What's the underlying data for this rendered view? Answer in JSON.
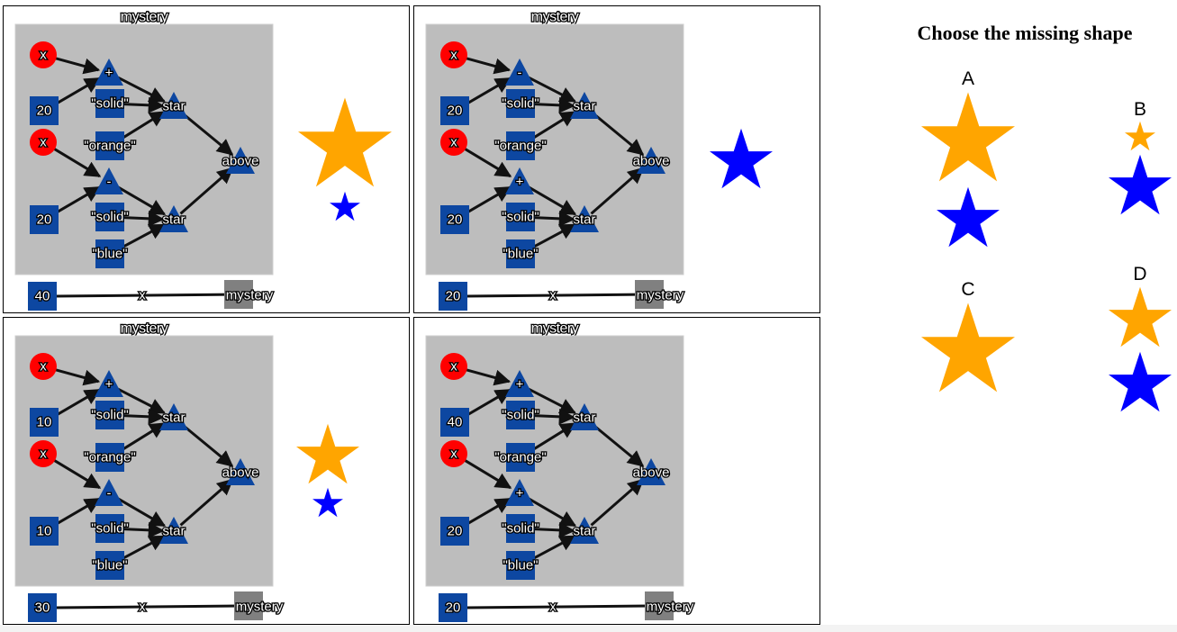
{
  "panels": [
    {
      "title": "mystery",
      "nodes": {
        "x1": "x",
        "op1": "+",
        "n1": "20",
        "mode1": "\"solid\"",
        "star1": "star",
        "x2": "x",
        "color1": "\"orange\"",
        "above": "above",
        "op2": "-",
        "n2": "20",
        "mode2": "\"solid\"",
        "star2": "star",
        "color2": "\"blue\""
      },
      "input_value": "40",
      "param_label": "x",
      "function_name": "mystery",
      "result": [
        {
          "color": "#FFA500",
          "size": 104
        },
        {
          "color": "#0000FF",
          "size": 34
        }
      ]
    },
    {
      "title": "mystery",
      "nodes": {
        "x1": "x",
        "op1": "-",
        "n1": "20",
        "mode1": "\"solid\"",
        "star1": "star",
        "x2": "x",
        "color1": "\"orange\"",
        "above": "above",
        "op2": "+",
        "n2": "20",
        "mode2": "\"solid\"",
        "star2": "star",
        "color2": "\"blue\""
      },
      "input_value": "20",
      "param_label": "x",
      "function_name": "mystery",
      "result": [
        {
          "color": "#0000FF",
          "size": 70
        }
      ]
    },
    {
      "title": "mystery",
      "nodes": {
        "x1": "x",
        "op1": "+",
        "n1": "10",
        "mode1": "\"solid\"",
        "star1": "star",
        "x2": "x",
        "color1": "\"orange\"",
        "above": "above",
        "op2": "-",
        "n2": "10",
        "mode2": "\"solid\"",
        "star2": "star",
        "color2": "\"blue\""
      },
      "input_value": "30",
      "param_label": "x",
      "function_name": "mystery",
      "result": [
        {
          "color": "#FFA500",
          "size": 70
        },
        {
          "color": "#0000FF",
          "size": 34
        }
      ]
    },
    {
      "title": "mystery",
      "nodes": {
        "x1": "x",
        "op1": "+",
        "n1": "40",
        "mode1": "\"solid\"",
        "star1": "star",
        "x2": "x",
        "color1": "\"orange\"",
        "above": "above",
        "op2": "+",
        "n2": "20",
        "mode2": "\"solid\"",
        "star2": "star",
        "color2": "\"blue\""
      },
      "input_value": "20",
      "param_label": "x",
      "function_name": "mystery",
      "result": []
    }
  ],
  "question": {
    "title": "Choose the missing shape",
    "choices": [
      {
        "letter": "A",
        "stars": [
          {
            "color": "#FFA500",
            "size": 104
          },
          {
            "color": "#0000FF",
            "size": 70
          }
        ]
      },
      {
        "letter": "B",
        "stars": [
          {
            "color": "#FFA500",
            "size": 34
          },
          {
            "color": "#0000FF",
            "size": 70
          }
        ]
      },
      {
        "letter": "C",
        "stars": [
          {
            "color": "#FFA500",
            "size": 104
          }
        ]
      },
      {
        "letter": "D",
        "stars": [
          {
            "color": "#FFA500",
            "size": 70
          },
          {
            "color": "#0000FF",
            "size": 70
          }
        ]
      }
    ]
  },
  "colors": {
    "node_blue": "#0D47A1",
    "var_red": "#FF0000",
    "graph_bg": "#BDBDBD",
    "mystery_box": "#808080",
    "edge": "#111111",
    "star_orange": "#FFA500",
    "star_blue": "#0000FF"
  }
}
